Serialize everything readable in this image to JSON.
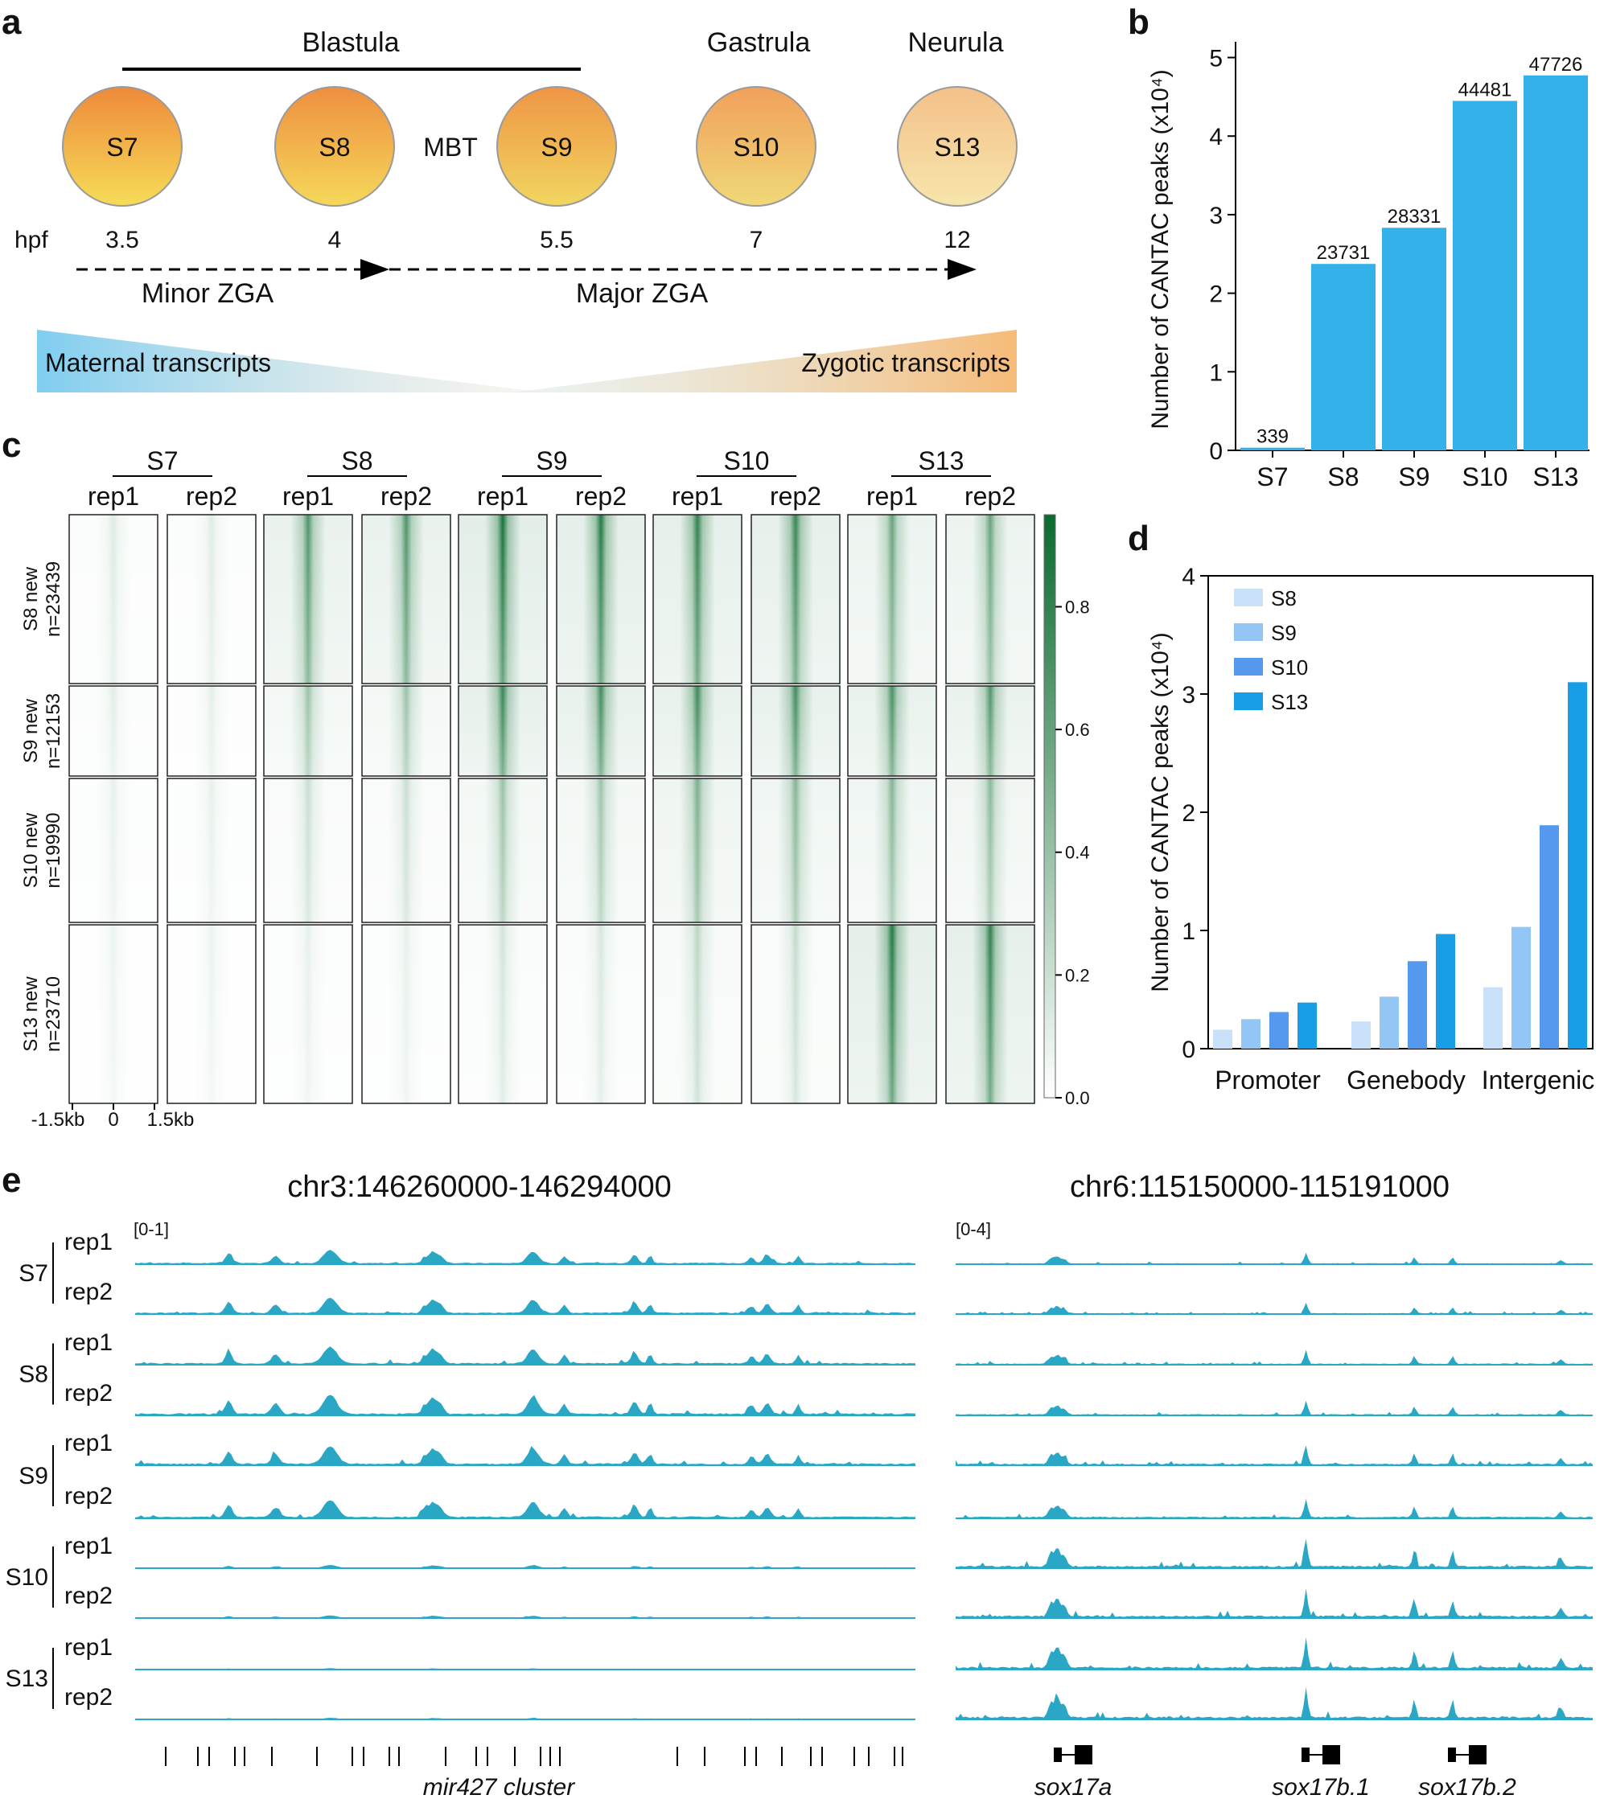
{
  "panel_letters": {
    "a": "a",
    "b": "b",
    "c": "c",
    "d": "d",
    "e": "e"
  },
  "panel_a": {
    "groups": {
      "blastula": "Blastula",
      "gastrula": "Gastrula",
      "neurula": "Neurula"
    },
    "stages": [
      {
        "name": "S7",
        "hpf": "3.5",
        "top": "#ee8a3a",
        "bottom": "#f6dc58"
      },
      {
        "name": "S8",
        "hpf": "4",
        "top": "#ee8f40",
        "bottom": "#f5d85a"
      },
      {
        "name": "S9",
        "hpf": "5.5",
        "top": "#ef9545",
        "bottom": "#f1d660"
      },
      {
        "name": "S10",
        "hpf": "7",
        "top": "#f0a05a",
        "bottom": "#f0d878"
      },
      {
        "name": "S13",
        "hpf": "12",
        "top": "#f4c089",
        "bottom": "#f6e6ac"
      }
    ],
    "mbt": "MBT",
    "hpf_label": "hpf",
    "minor_zga": "Minor ZGA",
    "major_zga": "Major ZGA",
    "maternal": "Maternal transcripts",
    "zygotic": "Zygotic transcripts",
    "maternal_color": "#7fcdf0",
    "zygotic_color": "#f6bb78"
  },
  "panel_c": {
    "stage_groups": [
      "S7",
      "S8",
      "S9",
      "S10",
      "S13"
    ],
    "replicates": [
      "rep1",
      "rep2"
    ],
    "row_groups": [
      {
        "line1": "S8 new",
        "line2": "n=23439"
      },
      {
        "line1": "S9 new",
        "line2": "n=12153"
      },
      {
        "line1": "S10 new",
        "line2": "n=19990"
      },
      {
        "line1": "S13 new",
        "line2": "n=23710"
      }
    ],
    "x_ticks": [
      "-1.5kb",
      "0",
      "1.5kb"
    ],
    "colorbar_ticks": [
      "0.0",
      "0.2",
      "0.4",
      "0.6",
      "0.8"
    ],
    "color_low": "#ffffff",
    "color_high": "#0b6b2f",
    "intensity": [
      [
        0.14,
        0.13,
        0.72,
        0.72,
        0.95,
        0.9,
        0.85,
        0.82,
        0.62,
        0.62
      ],
      [
        0.12,
        0.11,
        0.42,
        0.42,
        0.82,
        0.78,
        0.8,
        0.78,
        0.75,
        0.72
      ],
      [
        0.1,
        0.1,
        0.22,
        0.22,
        0.42,
        0.4,
        0.55,
        0.5,
        0.5,
        0.48
      ],
      [
        0.08,
        0.08,
        0.1,
        0.1,
        0.18,
        0.16,
        0.28,
        0.24,
        0.9,
        0.85
      ]
    ]
  },
  "chart_data": [
    {
      "type": "bar",
      "panel": "b",
      "categories": [
        "S7",
        "S8",
        "S9",
        "S10",
        "S13"
      ],
      "values": [
        339,
        23731,
        28331,
        44481,
        47726
      ],
      "value_labels": [
        "339",
        "23731",
        "28331",
        "44481",
        "47726"
      ],
      "ylabel": "Number of CANTAC peaks (x10⁴)",
      "yticks": [
        "0",
        "1",
        "2",
        "3",
        "4",
        "5"
      ],
      "ylim": [
        0,
        52000
      ],
      "color": "#33b1e8"
    },
    {
      "type": "bar",
      "panel": "d",
      "categories": [
        "Promoter",
        "Genebody",
        "Intergenic"
      ],
      "series": [
        {
          "name": "S8",
          "values": [
            0.16,
            0.23,
            0.52
          ],
          "color": "#c9e1f8"
        },
        {
          "name": "S9",
          "values": [
            0.25,
            0.44,
            1.03
          ],
          "color": "#93c5f5"
        },
        {
          "name": "S10",
          "values": [
            0.31,
            0.74,
            1.89
          ],
          "color": "#5599ee"
        },
        {
          "name": "S13",
          "values": [
            0.39,
            0.97,
            3.1
          ],
          "color": "#179ee6"
        }
      ],
      "ylabel": "Number of CANTAC peaks (x10⁴)",
      "yticks": [
        "0",
        "1",
        "2",
        "3",
        "4"
      ],
      "ylim": [
        0,
        4
      ],
      "legend": "top-left"
    }
  ],
  "panel_e": {
    "track_color": "#2aa7c5",
    "left_title": "chr3:146260000-146294000",
    "right_title": "chr6:115150000-115191000",
    "left_range": "[0-1]",
    "right_range": "[0-4]",
    "stages": [
      "S7",
      "S8",
      "S9",
      "S10",
      "S13"
    ],
    "replicates": [
      "rep1",
      "rep2"
    ],
    "left_gene": "mir427 cluster",
    "right_genes": [
      "sox17a",
      "sox17b.1",
      "sox17b.2"
    ],
    "left_scale": [
      0.55,
      0.62,
      0.68,
      0.78,
      0.72,
      0.7,
      0.12,
      0.1,
      0.05,
      0.06
    ],
    "right_scale": [
      0.35,
      0.35,
      0.45,
      0.45,
      0.6,
      0.6,
      0.9,
      0.9,
      1.0,
      1.0
    ],
    "left_peaks": [
      {
        "pos": 0.12,
        "h": 0.55,
        "w": 0.006
      },
      {
        "pos": 0.18,
        "h": 0.42,
        "w": 0.007
      },
      {
        "pos": 0.25,
        "h": 0.75,
        "w": 0.012
      },
      {
        "pos": 0.37,
        "h": 0.35,
        "w": 0.004
      },
      {
        "pos": 0.38,
        "h": 0.6,
        "w": 0.006
      },
      {
        "pos": 0.39,
        "h": 0.45,
        "w": 0.007
      },
      {
        "pos": 0.51,
        "h": 0.65,
        "w": 0.01
      },
      {
        "pos": 0.55,
        "h": 0.4,
        "w": 0.005
      },
      {
        "pos": 0.64,
        "h": 0.5,
        "w": 0.006
      },
      {
        "pos": 0.66,
        "h": 0.45,
        "w": 0.004
      },
      {
        "pos": 0.79,
        "h": 0.35,
        "w": 0.005
      },
      {
        "pos": 0.81,
        "h": 0.45,
        "w": 0.006
      },
      {
        "pos": 0.85,
        "h": 0.4,
        "w": 0.004
      }
    ],
    "right_peaks": [
      {
        "pos": 0.15,
        "h": 0.5,
        "w": 0.006
      },
      {
        "pos": 0.16,
        "h": 0.6,
        "w": 0.005
      },
      {
        "pos": 0.17,
        "h": 0.4,
        "w": 0.006
      },
      {
        "pos": 0.55,
        "h": 0.95,
        "w": 0.004
      },
      {
        "pos": 0.72,
        "h": 0.55,
        "w": 0.004
      },
      {
        "pos": 0.78,
        "h": 0.55,
        "w": 0.004
      },
      {
        "pos": 0.95,
        "h": 0.3,
        "w": 0.005
      }
    ]
  }
}
